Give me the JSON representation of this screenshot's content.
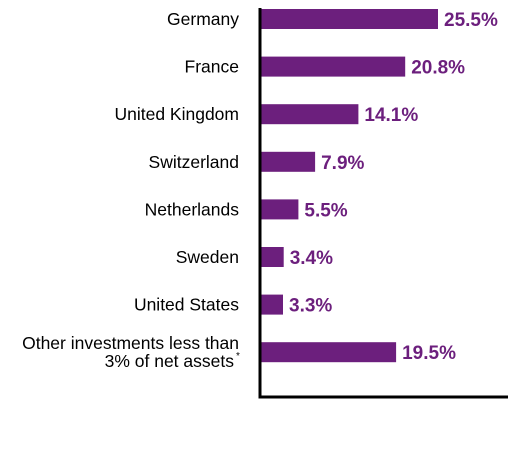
{
  "chart_data": {
    "type": "bar",
    "orientation": "horizontal",
    "categories": [
      "Germany",
      "France",
      "United Kingdom",
      "Switzerland",
      "Netherlands",
      "Sweden",
      "United States",
      "Other investments less than 3% of net assets*"
    ],
    "category_lines": [
      [
        "Germany"
      ],
      [
        "France"
      ],
      [
        "United Kingdom"
      ],
      [
        "Switzerland"
      ],
      [
        "Netherlands"
      ],
      [
        "Sweden"
      ],
      [
        "United States"
      ],
      [
        "Other investments less than",
        "3% of net assets"
      ]
    ],
    "footnote_marker": "*",
    "values": [
      25.5,
      20.8,
      14.1,
      7.9,
      5.5,
      3.4,
      3.3,
      19.5
    ],
    "value_labels": [
      "25.5%",
      "20.8%",
      "14.1%",
      "7.9%",
      "5.5%",
      "3.4%",
      "3.3%",
      "19.5%"
    ],
    "title": "",
    "xlabel": "",
    "ylabel": "",
    "xlim": [
      0,
      31
    ],
    "grid": false,
    "legend": "none",
    "bar_color": "#6c1f7d",
    "label_color": "#6c1f7d",
    "axis_color": "#000000"
  }
}
